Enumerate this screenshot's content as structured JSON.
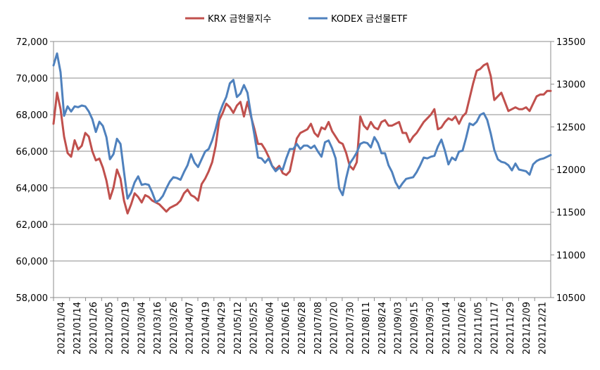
{
  "chart_data": {
    "type": "line",
    "legend_position": "top",
    "grid": true,
    "y_left_range": [
      58000,
      72000
    ],
    "y_left_ticks": [
      "58,000",
      "60,000",
      "62,000",
      "64,000",
      "66,000",
      "68,000",
      "70,000",
      "72,000"
    ],
    "y_right_range": [
      10500,
      13500
    ],
    "y_right_ticks": [
      "10500",
      "11000",
      "11500",
      "12000",
      "12500",
      "13000",
      "13500"
    ],
    "x_tick_labels": [
      "2021/01/04",
      "2021/01/14",
      "2021/01/26",
      "2021/02/05",
      "2021/02/19",
      "2021/03/04",
      "2021/03/16",
      "2021/03/26",
      "2021/04/07",
      "2021/04/19",
      "2021/04/29",
      "2021/05/12",
      "2021/05/25",
      "2021/06/04",
      "2021/06/16",
      "2021/06/28",
      "2021/07/08",
      "2021/07/20",
      "2021/07/30",
      "2021/08/11",
      "2021/08/24",
      "2021/09/03",
      "2021/09/15",
      "2021/09/30",
      "2021/10/14",
      "2021/10/26",
      "2021/11/05",
      "2021/11/17",
      "2021/11/29",
      "2021/12/09",
      "2021/12/21"
    ],
    "series": [
      {
        "name": "KRX 금현물지수",
        "axis": "left",
        "color": "#C0504D",
        "values": [
          67500,
          69200,
          68300,
          66800,
          65900,
          65700,
          66600,
          66100,
          66300,
          67000,
          66800,
          66000,
          65500,
          65600,
          65100,
          64400,
          63400,
          64000,
          65000,
          64500,
          63300,
          62600,
          63100,
          63700,
          63500,
          63200,
          63600,
          63500,
          63300,
          63200,
          63100,
          62900,
          62700,
          62900,
          63000,
          63100,
          63300,
          63700,
          63900,
          63600,
          63500,
          63300,
          64200,
          64500,
          64900,
          65400,
          66300,
          67700,
          68100,
          68600,
          68400,
          68100,
          68500,
          68700,
          67900,
          68700,
          67900,
          67200,
          66400,
          66400,
          66100,
          65700,
          65200,
          65000,
          65200,
          64800,
          64700,
          64900,
          65800,
          66700,
          67000,
          67100,
          67200,
          67500,
          67000,
          66800,
          67300,
          67200,
          67600,
          67100,
          66800,
          66500,
          66400,
          65900,
          65200,
          65000,
          65400,
          67900,
          67400,
          67200,
          67600,
          67300,
          67200,
          67600,
          67700,
          67400,
          67400,
          67500,
          67600,
          67000,
          67000,
          66500,
          66800,
          67000,
          67300,
          67600,
          67800,
          68000,
          68300,
          67200,
          67300,
          67600,
          67800,
          67700,
          67900,
          67500,
          67900,
          68100,
          68900,
          69700,
          70400,
          70500,
          70700,
          70800,
          70100,
          68800,
          69000,
          69200,
          68700,
          68200,
          68300,
          68400,
          68300,
          68300,
          68400,
          68200,
          68600,
          69000,
          69100,
          69100,
          69300,
          69300
        ]
      },
      {
        "name": "KODEX 금선물ETF",
        "axis": "right",
        "color": "#4F81BD",
        "values": [
          13220,
          13360,
          13140,
          12630,
          12740,
          12680,
          12740,
          12730,
          12750,
          12740,
          12680,
          12590,
          12440,
          12560,
          12510,
          12380,
          12120,
          12180,
          12360,
          12300,
          11970,
          11660,
          11730,
          11850,
          11920,
          11820,
          11830,
          11820,
          11730,
          11620,
          11640,
          11690,
          11780,
          11860,
          11910,
          11900,
          11880,
          11970,
          12050,
          12180,
          12080,
          12030,
          12120,
          12210,
          12240,
          12340,
          12480,
          12650,
          12760,
          12850,
          13010,
          13050,
          12850,
          12890,
          12990,
          12900,
          12640,
          12400,
          12140,
          12130,
          12080,
          12130,
          12040,
          11980,
          12020,
          12000,
          12130,
          12240,
          12240,
          12300,
          12240,
          12280,
          12280,
          12250,
          12280,
          12210,
          12150,
          12320,
          12340,
          12250,
          12130,
          11780,
          11700,
          11900,
          12070,
          12130,
          12200,
          12300,
          12320,
          12310,
          12260,
          12380,
          12310,
          12190,
          12190,
          12050,
          11970,
          11850,
          11780,
          11840,
          11890,
          11900,
          11910,
          11970,
          12050,
          12140,
          12130,
          12150,
          12160,
          12270,
          12350,
          12220,
          12060,
          12140,
          12110,
          12210,
          12220,
          12370,
          12540,
          12520,
          12560,
          12640,
          12660,
          12580,
          12420,
          12230,
          12120,
          12090,
          12080,
          12050,
          11990,
          12070,
          12000,
          11990,
          11980,
          11940,
          12060,
          12100,
          12120,
          12130,
          12150,
          12170
        ]
      }
    ]
  }
}
